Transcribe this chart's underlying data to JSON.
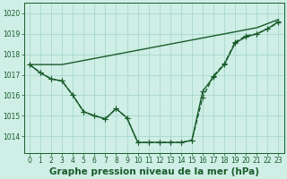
{
  "bg_color": "#ceeee6",
  "grid_color": "#a8d8cc",
  "line_color": "#1a5c2a",
  "title": "Graphe pression niveau de la mer (hPa)",
  "xlim": [
    -0.5,
    23.5
  ],
  "ylim": [
    1013.2,
    1020.5
  ],
  "yticks": [
    1014,
    1015,
    1016,
    1017,
    1018,
    1019,
    1020
  ],
  "xticks": [
    0,
    1,
    2,
    3,
    4,
    5,
    6,
    7,
    8,
    9,
    10,
    11,
    12,
    13,
    14,
    15,
    16,
    17,
    18,
    19,
    20,
    21,
    22,
    23
  ],
  "series": [
    {
      "y": [
        1017.5,
        1017.5,
        1017.5,
        1017.5,
        1017.6,
        1017.7,
        1017.8,
        1017.9,
        1018.0,
        1018.1,
        1018.2,
        1018.3,
        1018.4,
        1018.5,
        1018.6,
        1018.7,
        1018.8,
        1018.9,
        1019.0,
        1019.1,
        1019.2,
        1019.3,
        1019.5,
        1019.7
      ],
      "linestyle": "-",
      "marker": false
    },
    {
      "y": [
        1017.5,
        1017.1,
        1016.8,
        1016.7,
        1016.0,
        1015.2,
        1015.0,
        1014.85,
        1015.35,
        1014.9,
        1013.7,
        1013.7,
        1013.7,
        1013.7,
        1013.7,
        1013.8,
        1016.2,
        1016.9,
        1017.5,
        1018.55,
        1018.85,
        1019.0,
        1019.25,
        1019.6
      ],
      "linestyle": "-",
      "marker": true
    },
    {
      "y": [
        1017.5,
        1017.1,
        1016.8,
        1016.7,
        1016.0,
        1015.2,
        1015.0,
        1014.85,
        1015.35,
        1014.9,
        1013.7,
        1013.7,
        1013.7,
        1013.7,
        1013.7,
        1013.8,
        1015.9,
        1016.95,
        1017.55,
        1018.6,
        1018.9,
        1019.0,
        1019.25,
        1019.55
      ],
      "linestyle": "--",
      "marker": true
    }
  ],
  "marker_style": "+",
  "markersize": 4.0,
  "linewidth": 1.0,
  "title_fontsize": 7.5,
  "tick_fontsize": 5.5
}
